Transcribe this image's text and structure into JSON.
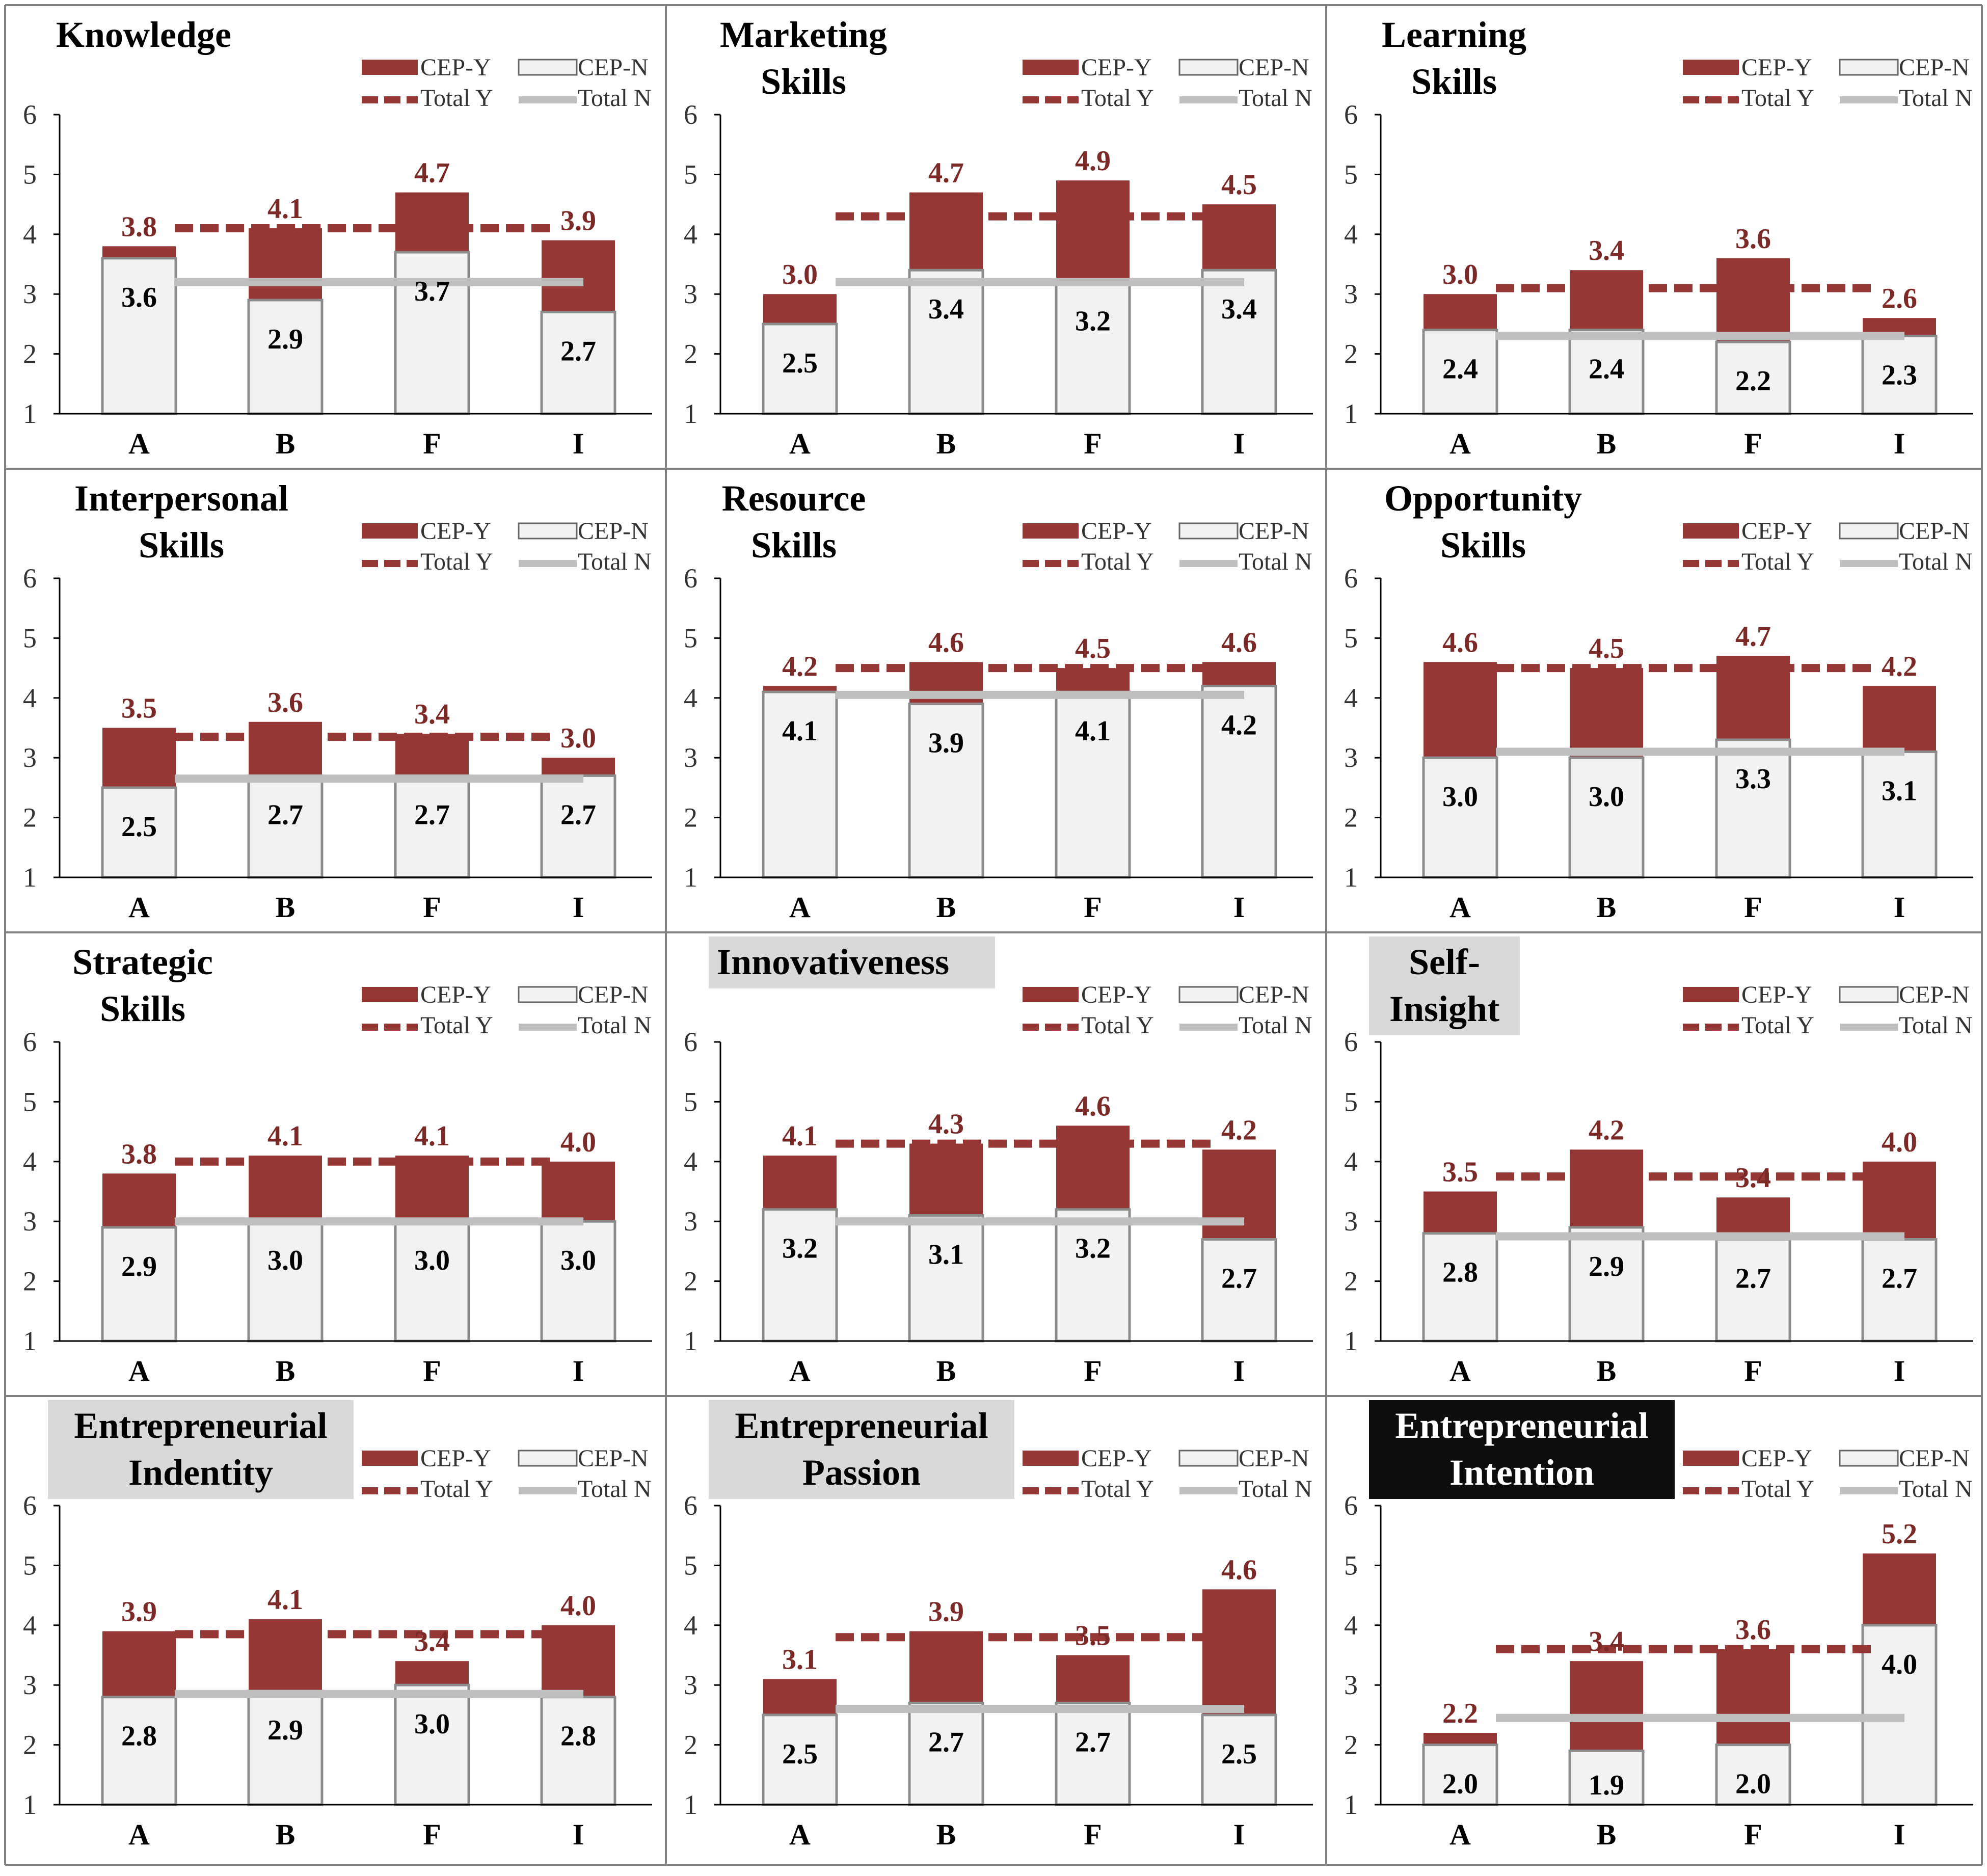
{
  "legend": {
    "cepY": "CEP-Y",
    "cepN": "CEP-N",
    "totalY": "Total Y",
    "totalN": "Total N"
  },
  "colors": {
    "cepY": "#953735",
    "cepN": "#f2f2f2",
    "cepN_stroke": "#8c8c8c",
    "totalY": "#953735",
    "totalN": "#bfbfbf",
    "valueY_text": "#7b2a28",
    "grid_border": "#808080",
    "title_plain_bg": "none",
    "title_gray_bg": "#d9d9d9",
    "title_black_bg": "#0d0d0d"
  },
  "chart_data": [
    {
      "type": "bar",
      "title": [
        "Knowledge"
      ],
      "titleStyle": "plain",
      "categories": [
        "A",
        "B",
        "F",
        "I"
      ],
      "ylim": [
        1,
        6
      ],
      "yticks": [
        1,
        2,
        3,
        4,
        5,
        6
      ],
      "series": [
        {
          "name": "CEP-Y",
          "values": [
            3.8,
            4.1,
            4.7,
            3.9
          ],
          "labels": [
            "3.8",
            "4.1",
            "4.7",
            "3.9"
          ]
        },
        {
          "name": "CEP-N",
          "values": [
            3.6,
            2.9,
            3.7,
            2.7
          ],
          "labels": [
            "3.6",
            "2.9",
            "3.7",
            "2.7"
          ]
        }
      ],
      "totalY": 4.1,
      "totalN": 3.2
    },
    {
      "type": "bar",
      "title": [
        "Marketing",
        "Skills"
      ],
      "titleStyle": "plain",
      "categories": [
        "A",
        "B",
        "F",
        "I"
      ],
      "ylim": [
        1,
        6
      ],
      "yticks": [
        1,
        2,
        3,
        4,
        5,
        6
      ],
      "series": [
        {
          "name": "CEP-Y",
          "values": [
            3.0,
            4.7,
            4.9,
            4.5
          ],
          "labels": [
            "3.0",
            "4.7",
            "4.9",
            "4.5"
          ]
        },
        {
          "name": "CEP-N",
          "values": [
            2.5,
            3.4,
            3.2,
            3.4
          ],
          "labels": [
            "2.5",
            "3.4",
            "3.2",
            "3.4"
          ]
        }
      ],
      "totalY": 4.3,
      "totalN": 3.2
    },
    {
      "type": "bar",
      "title": [
        "Learning",
        "Skills"
      ],
      "titleStyle": "plain",
      "categories": [
        "A",
        "B",
        "F",
        "I"
      ],
      "ylim": [
        1,
        6
      ],
      "yticks": [
        1,
        2,
        3,
        4,
        5,
        6
      ],
      "series": [
        {
          "name": "CEP-Y",
          "values": [
            3.0,
            3.4,
            3.6,
            2.6
          ],
          "labels": [
            "3.0",
            "3.4",
            "3.6",
            "2.6"
          ]
        },
        {
          "name": "CEP-N",
          "values": [
            2.4,
            2.4,
            2.2,
            2.3
          ],
          "labels": [
            "2.4",
            "2.4",
            "2.2",
            "2.3"
          ]
        }
      ],
      "totalY": 3.1,
      "totalN": 2.3
    },
    {
      "type": "bar",
      "title": [
        "Interpersonal",
        "Skills"
      ],
      "titleStyle": "plain",
      "categories": [
        "A",
        "B",
        "F",
        "I"
      ],
      "ylim": [
        1,
        6
      ],
      "yticks": [
        1,
        2,
        3,
        4,
        5,
        6
      ],
      "series": [
        {
          "name": "CEP-Y",
          "values": [
            3.5,
            3.6,
            3.4,
            3.0
          ],
          "labels": [
            "3.5",
            "3.6",
            "3.4",
            "3.0"
          ]
        },
        {
          "name": "CEP-N",
          "values": [
            2.5,
            2.7,
            2.7,
            2.7
          ],
          "labels": [
            "2.5",
            "2.7",
            "2.7",
            "2.7"
          ]
        }
      ],
      "totalY": 3.35,
      "totalN": 2.65
    },
    {
      "type": "bar",
      "title": [
        "Resource",
        "Skills"
      ],
      "titleStyle": "plain",
      "categories": [
        "A",
        "B",
        "F",
        "I"
      ],
      "ylim": [
        1,
        6
      ],
      "yticks": [
        1,
        2,
        3,
        4,
        5,
        6
      ],
      "series": [
        {
          "name": "CEP-Y",
          "values": [
            4.2,
            4.6,
            4.5,
            4.6
          ],
          "labels": [
            "4.2",
            "4.6",
            "4.5",
            "4.6"
          ]
        },
        {
          "name": "CEP-N",
          "values": [
            4.1,
            3.9,
            4.1,
            4.2
          ],
          "labels": [
            "4.1",
            "3.9",
            "4.1",
            "4.2"
          ]
        }
      ],
      "totalY": 4.5,
      "totalN": 4.05
    },
    {
      "type": "bar",
      "title": [
        "Opportunity",
        "Skills"
      ],
      "titleStyle": "plain",
      "categories": [
        "A",
        "B",
        "F",
        "I"
      ],
      "ylim": [
        1,
        6
      ],
      "yticks": [
        1,
        2,
        3,
        4,
        5,
        6
      ],
      "series": [
        {
          "name": "CEP-Y",
          "values": [
            4.6,
            4.5,
            4.7,
            4.2
          ],
          "labels": [
            "4.6",
            "4.5",
            "4.7",
            "4.2"
          ]
        },
        {
          "name": "CEP-N",
          "values": [
            3.0,
            3.0,
            3.3,
            3.1
          ],
          "labels": [
            "3.0",
            "3.0",
            "3.3",
            "3.1"
          ]
        }
      ],
      "totalY": 4.5,
      "totalN": 3.1
    },
    {
      "type": "bar",
      "title": [
        "Strategic",
        "Skills"
      ],
      "titleStyle": "plain",
      "categories": [
        "A",
        "B",
        "F",
        "I"
      ],
      "ylim": [
        1,
        6
      ],
      "yticks": [
        1,
        2,
        3,
        4,
        5,
        6
      ],
      "series": [
        {
          "name": "CEP-Y",
          "values": [
            3.8,
            4.1,
            4.1,
            4.0
          ],
          "labels": [
            "3.8",
            "4.1",
            "4.1",
            "4.0"
          ]
        },
        {
          "name": "CEP-N",
          "values": [
            2.9,
            3.0,
            3.0,
            3.0
          ],
          "labels": [
            "2.9",
            "3.0",
            "3.0",
            "3.0"
          ]
        }
      ],
      "totalY": 4.0,
      "totalN": 3.0
    },
    {
      "type": "bar",
      "title": [
        "Innovativeness"
      ],
      "titleStyle": "gray",
      "categories": [
        "A",
        "B",
        "F",
        "I"
      ],
      "ylim": [
        1,
        6
      ],
      "yticks": [
        1,
        2,
        3,
        4,
        5,
        6
      ],
      "series": [
        {
          "name": "CEP-Y",
          "values": [
            4.1,
            4.3,
            4.6,
            4.2
          ],
          "labels": [
            "4.1",
            "4.3",
            "4.6",
            "4.2"
          ]
        },
        {
          "name": "CEP-N",
          "values": [
            3.2,
            3.1,
            3.2,
            2.7
          ],
          "labels": [
            "3.2",
            "3.1",
            "3.2",
            "2.7"
          ]
        }
      ],
      "totalY": 4.3,
      "totalN": 3.0
    },
    {
      "type": "bar",
      "title": [
        "Self-",
        "Insight"
      ],
      "titleStyle": "gray",
      "categories": [
        "A",
        "B",
        "F",
        "I"
      ],
      "ylim": [
        1,
        6
      ],
      "yticks": [
        1,
        2,
        3,
        4,
        5,
        6
      ],
      "series": [
        {
          "name": "CEP-Y",
          "values": [
            3.5,
            4.2,
            3.4,
            4.0
          ],
          "labels": [
            "3.5",
            "4.2",
            "3.4",
            "4.0"
          ]
        },
        {
          "name": "CEP-N",
          "values": [
            2.8,
            2.9,
            2.7,
            2.7
          ],
          "labels": [
            "2.8",
            "2.9",
            "2.7",
            "2.7"
          ]
        }
      ],
      "totalY": 3.75,
      "totalN": 2.75
    },
    {
      "type": "bar",
      "title": [
        "Entrepreneurial",
        "Indentity"
      ],
      "titleStyle": "gray",
      "categories": [
        "A",
        "B",
        "F",
        "I"
      ],
      "ylim": [
        1,
        6
      ],
      "yticks": [
        1,
        2,
        3,
        4,
        5,
        6
      ],
      "series": [
        {
          "name": "CEP-Y",
          "values": [
            3.9,
            4.1,
            3.4,
            4.0
          ],
          "labels": [
            "3.9",
            "4.1",
            "3.4",
            "4.0"
          ]
        },
        {
          "name": "CEP-N",
          "values": [
            2.8,
            2.9,
            3.0,
            2.8
          ],
          "labels": [
            "2.8",
            "2.9",
            "3.0",
            "2.8"
          ]
        }
      ],
      "totalY": 3.85,
      "totalN": 2.85
    },
    {
      "type": "bar",
      "title": [
        "Entrepreneurial",
        "Passion"
      ],
      "titleStyle": "gray",
      "categories": [
        "A",
        "B",
        "F",
        "I"
      ],
      "ylim": [
        1,
        6
      ],
      "yticks": [
        1,
        2,
        3,
        4,
        5,
        6
      ],
      "series": [
        {
          "name": "CEP-Y",
          "values": [
            3.1,
            3.9,
            3.5,
            4.6
          ],
          "labels": [
            "3.1",
            "3.9",
            "3.5",
            "4.6"
          ]
        },
        {
          "name": "CEP-N",
          "values": [
            2.5,
            2.7,
            2.7,
            2.5
          ],
          "labels": [
            "2.5",
            "2.7",
            "2.7",
            "2.5"
          ]
        }
      ],
      "totalY": 3.8,
      "totalN": 2.6
    },
    {
      "type": "bar",
      "title": [
        "Entrepreneurial",
        "Intention"
      ],
      "titleStyle": "black",
      "categories": [
        "A",
        "B",
        "F",
        "I"
      ],
      "ylim": [
        1,
        6
      ],
      "yticks": [
        1,
        2,
        3,
        4,
        5,
        6
      ],
      "series": [
        {
          "name": "CEP-Y",
          "values": [
            2.2,
            3.4,
            3.6,
            5.2
          ],
          "labels": [
            "2.2",
            "3.4",
            "3.6",
            "5.2"
          ]
        },
        {
          "name": "CEP-N",
          "values": [
            2.0,
            1.9,
            2.0,
            4.0
          ],
          "labels": [
            "2.0",
            "1.9",
            "2.0",
            "4.0"
          ]
        }
      ],
      "totalY": 3.6,
      "totalN": 2.45
    }
  ]
}
